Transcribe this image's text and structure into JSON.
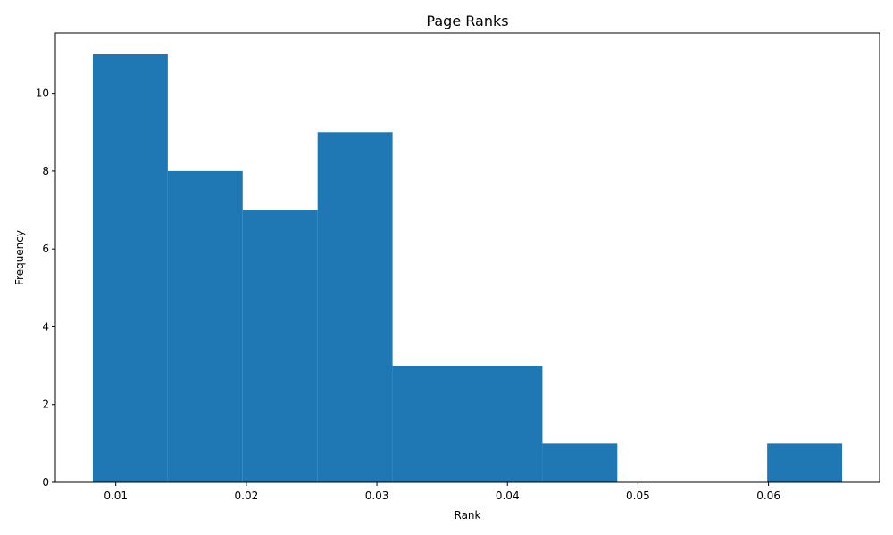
{
  "chart_data": {
    "type": "bar",
    "title": "Page Ranks",
    "xlabel": "Rank",
    "ylabel": "Frequency",
    "bins": [
      {
        "start": 0.00824,
        "end": 0.01398,
        "count": 11
      },
      {
        "start": 0.01398,
        "end": 0.01972,
        "count": 8
      },
      {
        "start": 0.01972,
        "end": 0.02546,
        "count": 7
      },
      {
        "start": 0.02546,
        "end": 0.0312,
        "count": 9
      },
      {
        "start": 0.0312,
        "end": 0.03694,
        "count": 3
      },
      {
        "start": 0.03694,
        "end": 0.04268,
        "count": 3
      },
      {
        "start": 0.04268,
        "end": 0.04842,
        "count": 1
      },
      {
        "start": 0.04842,
        "end": 0.05416,
        "count": 0
      },
      {
        "start": 0.05416,
        "end": 0.0599,
        "count": 0
      },
      {
        "start": 0.0599,
        "end": 0.06564,
        "count": 1
      }
    ],
    "xlim": [
      0.00537,
      0.06851
    ],
    "ylim": [
      0,
      11.55
    ],
    "xticks": [
      {
        "value": 0.01,
        "label": "0.01"
      },
      {
        "value": 0.02,
        "label": "0.02"
      },
      {
        "value": 0.03,
        "label": "0.03"
      },
      {
        "value": 0.04,
        "label": "0.04"
      },
      {
        "value": 0.05,
        "label": "0.05"
      },
      {
        "value": 0.06,
        "label": "0.06"
      }
    ],
    "yticks": [
      {
        "value": 0,
        "label": "0"
      },
      {
        "value": 2,
        "label": "2"
      },
      {
        "value": 4,
        "label": "4"
      },
      {
        "value": 6,
        "label": "6"
      },
      {
        "value": 8,
        "label": "8"
      },
      {
        "value": 10,
        "label": "10"
      }
    ],
    "grid": false,
    "bar_color": "#1f77b4"
  }
}
